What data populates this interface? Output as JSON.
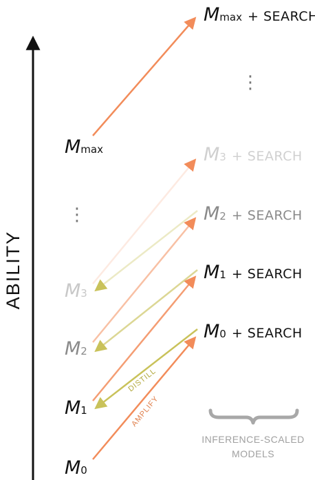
{
  "axis": {
    "label": "ABILITY"
  },
  "base_models": [
    {
      "letter": "M",
      "sub": "0"
    },
    {
      "letter": "M",
      "sub": "1"
    },
    {
      "letter": "M",
      "sub": "2"
    },
    {
      "letter": "M",
      "sub": "3"
    },
    {
      "letter": "M",
      "sub": "max"
    }
  ],
  "scaled_models": [
    {
      "letter": "M",
      "sub": "0",
      "suffix": "+ SEARCH"
    },
    {
      "letter": "M",
      "sub": "1",
      "suffix": "+ SEARCH"
    },
    {
      "letter": "M",
      "sub": "2",
      "suffix": "+ SEARCH"
    },
    {
      "letter": "M",
      "sub": "3",
      "suffix": "+ SEARCH"
    },
    {
      "letter": "M",
      "sub": "max",
      "suffix": "+ SEARCH"
    }
  ],
  "ellipsis": "⋮",
  "arrow_labels": {
    "amplify": "AMPLIFY",
    "distill": "DISTILL"
  },
  "brace_caption": {
    "line1": "INFERENCE-SCALED",
    "line2": "MODELS"
  },
  "colors": {
    "amplify": "#f28c5a",
    "distill": "#c9c25a",
    "text": "#111111",
    "faded_text_m2": "#8a8a8a",
    "faded_text_m3": "#c8c8c8",
    "caption": "#a0a0a0",
    "brace": "#a8a8a8"
  }
}
